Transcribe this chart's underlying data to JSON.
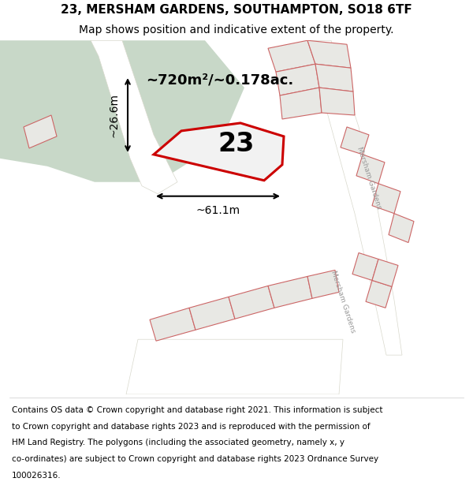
{
  "title_line1": "23, MERSHAM GARDENS, SOUTHAMPTON, SO18 6TF",
  "title_line2": "Map shows position and indicative extent of the property.",
  "footer_lines": [
    "Contains OS data © Crown copyright and database right 2021. This information is subject",
    "to Crown copyright and database rights 2023 and is reproduced with the permission of",
    "HM Land Registry. The polygons (including the associated geometry, namely x, y",
    "co-ordinates) are subject to Crown copyright and database rights 2023 Ordnance Survey",
    "100026316."
  ],
  "area_label": "~720m²/~0.178ac.",
  "width_label": "~61.1m",
  "height_label": "~26.6m",
  "number_label": "23",
  "map_bg": "#f0f0eb",
  "green_area_color": "#c8d8c8",
  "road_color": "#ffffff",
  "other_plots_color": "#e8e8e4",
  "other_plots_outline": "#cc6666",
  "road_outline": "#d8d8cc",
  "plot_outline": "#cc0000",
  "title_fontsize": 11,
  "subtitle_fontsize": 10,
  "footer_fontsize": 7.5
}
